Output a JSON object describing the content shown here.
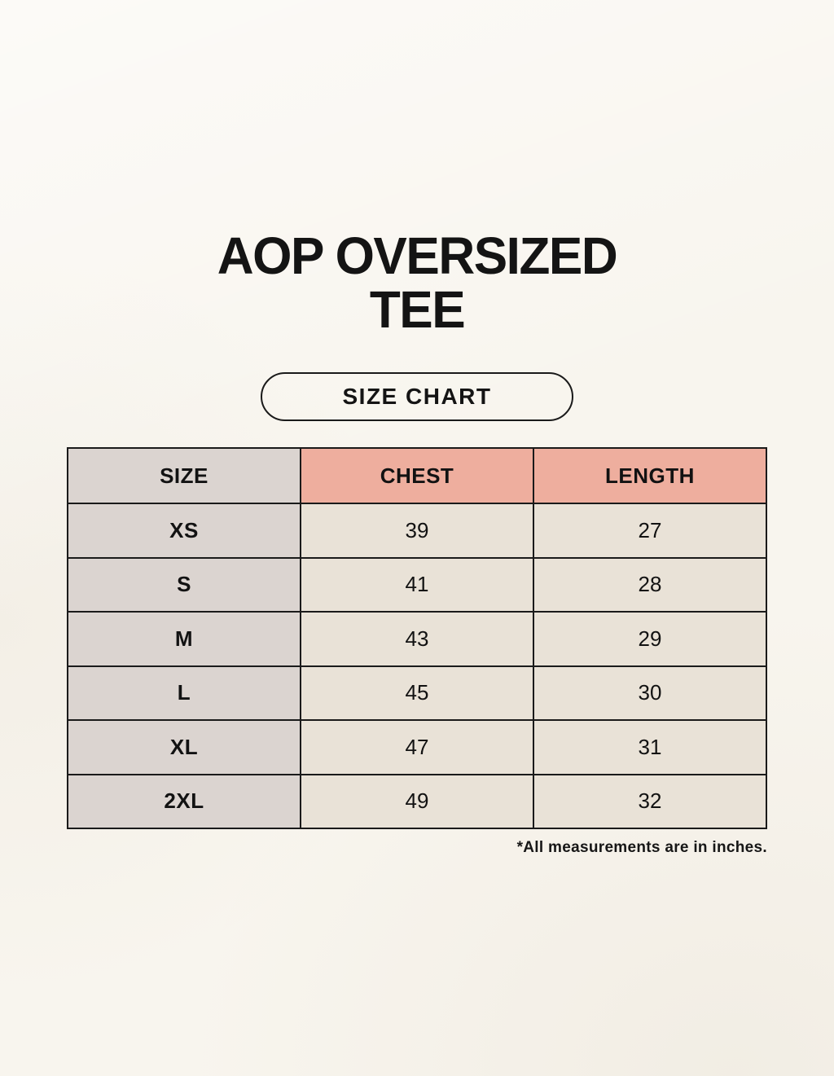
{
  "header": {
    "title_line1": "AOP OVERSIZED",
    "title_line2": "TEE",
    "badge_label": "SIZE CHART"
  },
  "colors": {
    "page_background": "#f8f5ee",
    "header_pink": "#eeae9e",
    "size_column_gray": "#dbd4d0",
    "cell_cream": "#e9e2d7",
    "border_black": "#1a1a1a",
    "text": "#141414"
  },
  "chart_data": {
    "type": "table",
    "title": "AOP OVERSIZED TEE",
    "columns": [
      "SIZE",
      "CHEST",
      "LENGTH"
    ],
    "rows": [
      {
        "size": "XS",
        "chest": "39",
        "length": "27"
      },
      {
        "size": "S",
        "chest": "41",
        "length": "28"
      },
      {
        "size": "M",
        "chest": "43",
        "length": "29"
      },
      {
        "size": "L",
        "chest": "45",
        "length": "30"
      },
      {
        "size": "XL",
        "chest": "47",
        "length": "31"
      },
      {
        "size": "2XL",
        "chest": "49",
        "length": "32"
      }
    ],
    "note": "*All measurements are in inches."
  }
}
